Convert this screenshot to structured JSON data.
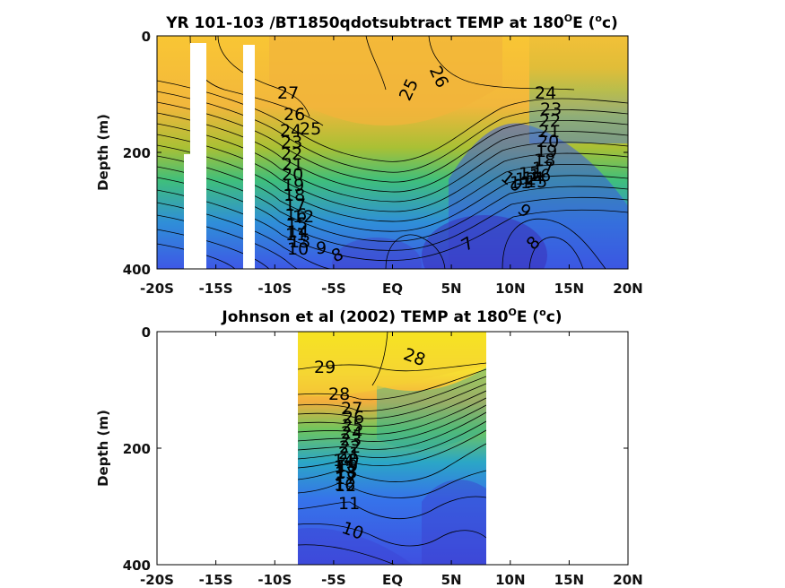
{
  "chart_data": [
    {
      "type": "heatmap",
      "title": "YR 101-103 /BT1850qdotsubtract TEMP at 180",
      "title_sup": "O",
      "title_after": "E (",
      "title_unit_sup": "o",
      "title_unit": "c)",
      "ylabel": "Depth (m)",
      "xlim": [
        -20,
        20
      ],
      "ylim": [
        0,
        400
      ],
      "y_reversed": true,
      "x_tick_labels": [
        "-20S",
        "-15S",
        "-10S",
        "-5S",
        "EQ",
        "5N",
        "10N",
        "15N",
        "20N"
      ],
      "y_tick_labels": [
        "0",
        "200",
        "400"
      ],
      "colormap": "parula",
      "contour_labels": [
        "27",
        "26",
        "25",
        "24",
        "23",
        "22",
        "21",
        "20",
        "19",
        "18",
        "17",
        "16",
        "15",
        "14",
        "13",
        "12",
        "11",
        "10",
        "9",
        "8",
        "7",
        "26",
        "25",
        "24",
        "23",
        "22",
        "21",
        "20",
        "19",
        "18",
        "17",
        "16",
        "15",
        "14",
        "13",
        "12",
        "11",
        "10",
        "9",
        "8"
      ],
      "missing_columns_lat": [
        [
          -17.5,
          -16.7
        ],
        [
          -12.9,
          -12.2
        ]
      ]
    },
    {
      "type": "heatmap",
      "title": "Johnson et al (2002) TEMP at 180",
      "title_sup": "O",
      "title_after": "E (",
      "title_unit_sup": "o",
      "title_unit": "c)",
      "ylabel": "Depth (m)",
      "xlim": [
        -20,
        20
      ],
      "ylim": [
        0,
        400
      ],
      "y_reversed": true,
      "data_xrange": [
        -8,
        8
      ],
      "x_tick_labels": [
        "-20S",
        "-15S",
        "-10S",
        "-5S",
        "EQ",
        "5N",
        "10N",
        "15N",
        "20N"
      ],
      "y_tick_labels": [
        "0",
        "200",
        "400"
      ],
      "colormap": "parula",
      "contour_labels": [
        "29",
        "28",
        "28",
        "27",
        "26",
        "25",
        "24",
        "23",
        "22",
        "21",
        "20",
        "19",
        "18",
        "17",
        "16",
        "15",
        "14",
        "13",
        "12",
        "11",
        "10"
      ]
    }
  ]
}
